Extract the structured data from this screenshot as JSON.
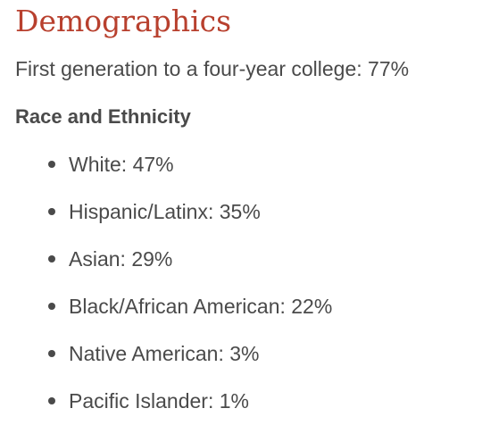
{
  "section": {
    "title": "Demographics",
    "first_generation": "First generation to a four-year college: 77%",
    "race_heading": "Race and Ethnicity",
    "race_items": [
      "White: 47%",
      "Hispanic/Latinx: 35%",
      "Asian: 29%",
      "Black/African American: 22%",
      "Native American: 3%",
      "Pacific Islander: 1%"
    ]
  },
  "colors": {
    "heading": "#b8402e",
    "text": "#4a4a4a",
    "background": "#ffffff"
  }
}
